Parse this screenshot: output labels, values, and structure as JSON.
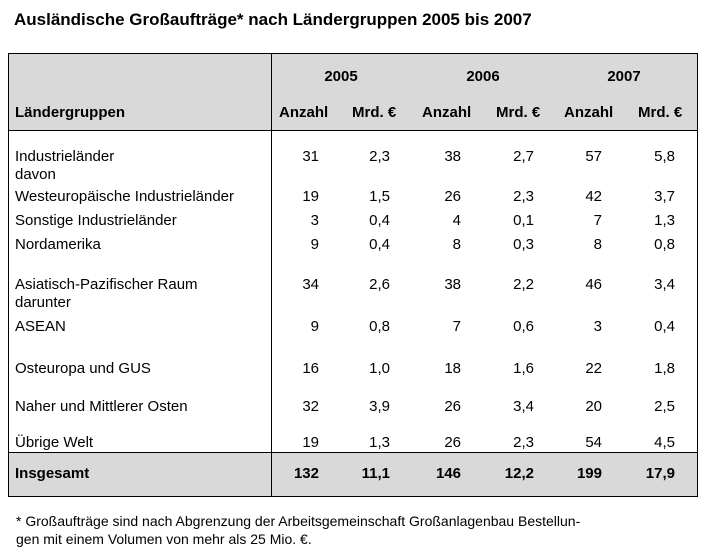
{
  "title": "Ausländische Großaufträge* nach Ländergruppen 2005 bis 2007",
  "years": [
    "2005",
    "2006",
    "2007"
  ],
  "col_header": "Ländergruppen",
  "sub_headers": [
    "Anzahl",
    "Mrd. €",
    "Anzahl",
    "Mrd. €",
    "Anzahl",
    "Mrd. €"
  ],
  "rows": [
    {
      "label": "Industrieländer",
      "sublabel": "davon",
      "values": [
        "31",
        "2,3",
        "38",
        "2,7",
        "57",
        "5,8"
      ]
    },
    {
      "label": "Westeuropäische Industrieländer",
      "values": [
        "19",
        "1,5",
        "26",
        "2,3",
        "42",
        "3,7"
      ]
    },
    {
      "label": "Sonstige Industrieländer",
      "values": [
        "3",
        "0,4",
        "4",
        "0,1",
        "7",
        "1,3"
      ]
    },
    {
      "label": "Nordamerika",
      "values": [
        "9",
        "0,4",
        "8",
        "0,3",
        "8",
        "0,8"
      ]
    },
    {
      "label": "Asiatisch-Pazifischer Raum",
      "sublabel": "darunter",
      "values": [
        "34",
        "2,6",
        "38",
        "2,2",
        "46",
        "3,4"
      ]
    },
    {
      "label": "ASEAN",
      "values": [
        "9",
        "0,8",
        "7",
        "0,6",
        "3",
        "0,4"
      ]
    },
    {
      "label": "Osteuropa und GUS",
      "values": [
        "16",
        "1,0",
        "18",
        "1,6",
        "22",
        "1,8"
      ]
    },
    {
      "label": "Naher und Mittlerer Osten",
      "values": [
        "32",
        "3,9",
        "26",
        "3,4",
        "20",
        "2,5"
      ]
    },
    {
      "label": "Übrige Welt",
      "values": [
        "19",
        "1,3",
        "26",
        "2,3",
        "54",
        "4,5"
      ]
    }
  ],
  "total": {
    "label": "Insgesamt",
    "values": [
      "132",
      "11,1",
      "146",
      "12,2",
      "199",
      "17,9"
    ]
  },
  "footnote_line1": "* Großaufträge sind nach Abgrenzung der Arbeitsgemeinschaft Großanlagenbau Bestellun-",
  "footnote_line2": "gen mit einem Volumen von mehr als 25 Mio. €."
}
